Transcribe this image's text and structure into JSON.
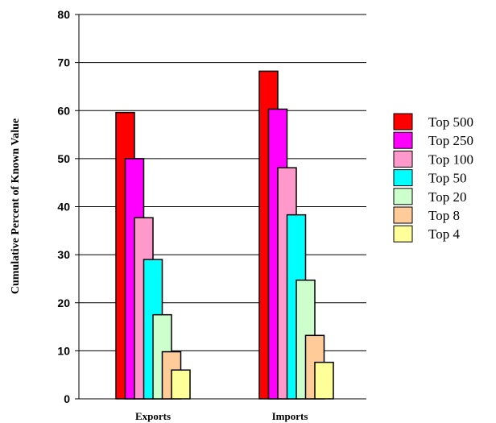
{
  "chart_data": {
    "type": "bar",
    "title": "",
    "xlabel": "",
    "ylabel": "Cumulative Percent of Known Value",
    "ylim": [
      0,
      80
    ],
    "yticks": [
      0,
      10,
      20,
      30,
      40,
      50,
      60,
      70,
      80
    ],
    "grid": true,
    "legend_position": "right",
    "categories": [
      "Exports",
      "Imports"
    ],
    "series": [
      {
        "name": "Top 500",
        "color": "#ff0000",
        "values": [
          59.6,
          68.2
        ]
      },
      {
        "name": "Top 250",
        "color": "#ff00ff",
        "values": [
          50.0,
          60.3
        ]
      },
      {
        "name": "Top 100",
        "color": "#ff99cc",
        "values": [
          37.7,
          48.1
        ]
      },
      {
        "name": "Top 50",
        "color": "#00ffff",
        "values": [
          29.0,
          38.3
        ]
      },
      {
        "name": "Top 20",
        "color": "#ccffcc",
        "values": [
          17.5,
          24.7
        ]
      },
      {
        "name": "Top 8",
        "color": "#ffcc99",
        "values": [
          9.8,
          13.2
        ]
      },
      {
        "name": "Top 4",
        "color": "#ffff99",
        "values": [
          6.0,
          7.6
        ]
      }
    ]
  }
}
